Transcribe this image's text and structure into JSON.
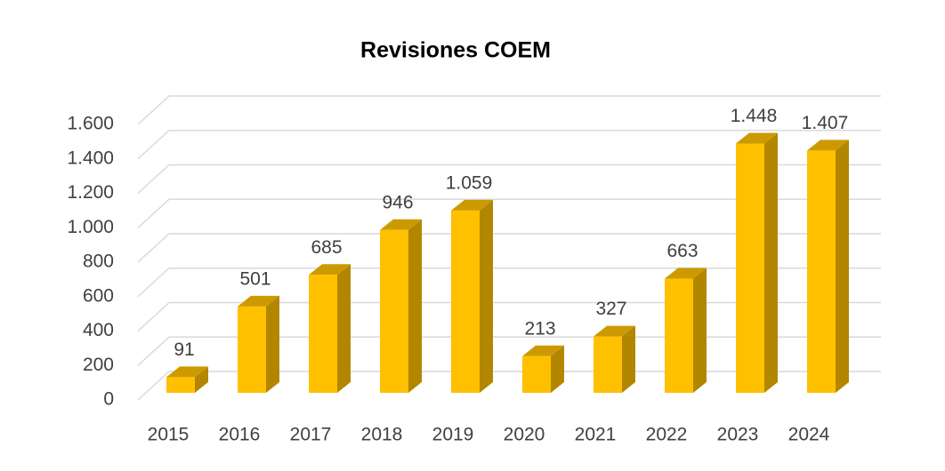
{
  "chart_data": {
    "type": "bar3d",
    "title": "Revisiones COEM",
    "categories": [
      "2015",
      "2016",
      "2017",
      "2018",
      "2019",
      "2020",
      "2021",
      "2022",
      "2023",
      "2024"
    ],
    "values": [
      91,
      501,
      685,
      946,
      1059,
      213,
      327,
      663,
      1448,
      1407
    ],
    "value_labels": [
      "91",
      "501",
      "685",
      "946",
      "1.059",
      "213",
      "327",
      "663",
      "1.448",
      "1.407"
    ],
    "color": "#FFC000",
    "ylim": [
      0,
      1600
    ],
    "yticks": [
      0,
      200,
      400,
      600,
      800,
      {
        "value": 1000,
        "label": "1.000"
      },
      {
        "value": 1200,
        "label": "1.200"
      },
      {
        "value": 1400,
        "label": "1.400"
      },
      {
        "value": 1600,
        "label": "1.600"
      }
    ],
    "grid": true
  }
}
